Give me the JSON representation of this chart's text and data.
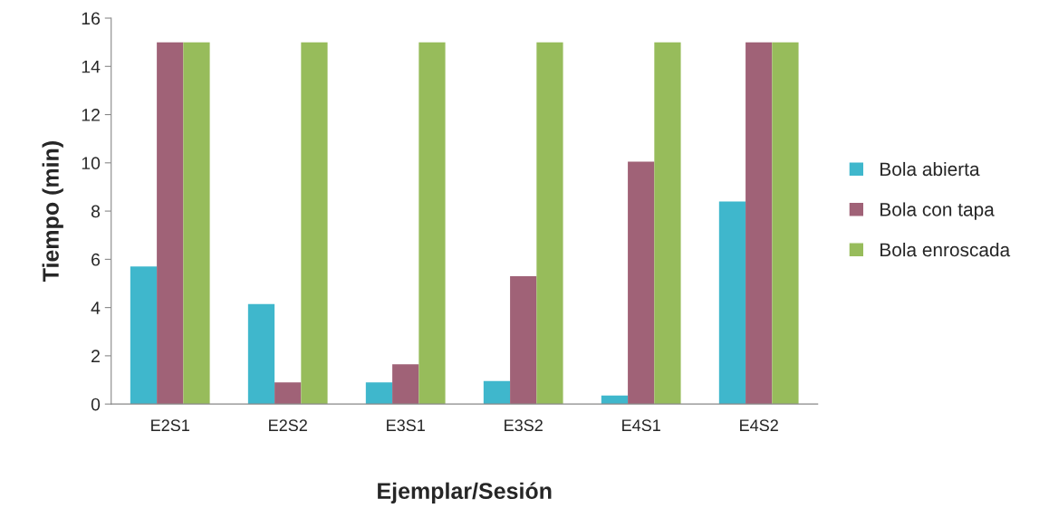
{
  "chart_data": {
    "type": "bar",
    "xlabel": "Ejemplar/Sesión",
    "ylabel": "Tiempo (min)",
    "categories": [
      "E2S1",
      "E2S2",
      "E3S1",
      "E3S2",
      "E4S1",
      "E4S2"
    ],
    "series": [
      {
        "name": "Bola abierta",
        "color": "#3fb7cc",
        "values": [
          5.7,
          4.15,
          0.9,
          0.95,
          0.35,
          8.4
        ]
      },
      {
        "name": "Bola con tapa",
        "color": "#a06277",
        "values": [
          15,
          0.9,
          1.65,
          5.3,
          10.05,
          15
        ]
      },
      {
        "name": "Bola enroscada",
        "color": "#97bc5b",
        "values": [
          15,
          15,
          15,
          15,
          15,
          15
        ]
      }
    ],
    "ylim": [
      0,
      16
    ],
    "yticks": [
      0,
      2,
      4,
      6,
      8,
      10,
      12,
      14,
      16
    ],
    "grid": false,
    "legend": "right"
  }
}
